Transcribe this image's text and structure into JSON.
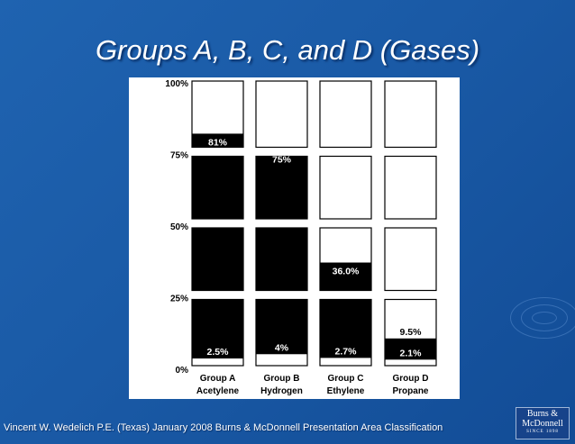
{
  "slide": {
    "title": "Groups A, B, C, and D (Gases)",
    "footer": "Vincent W. Wedelich P.E. (Texas) January 2008 Burns & McDonnell Presentation Area Classification",
    "logo_line1": "Burns &",
    "logo_line2": "McDonnell",
    "logo_line3": "SINCE 1898"
  },
  "colors": {
    "background": "#1a5aa6",
    "fill": "#000000",
    "empty": "#ffffff"
  },
  "chart_data": {
    "type": "bar",
    "y_tick_labels": [
      "100%",
      "75%",
      "50%",
      "25%",
      "0%"
    ],
    "ylim": [
      0,
      100
    ],
    "categories": [
      {
        "group": "Group A",
        "gas": "Acetylene",
        "lower": 2.5,
        "upper": 81,
        "lower_label": "2.5%",
        "upper_label": "81%"
      },
      {
        "group": "Group B",
        "gas": "Hydrogen",
        "lower": 4,
        "upper": 75,
        "lower_label": "4%",
        "upper_label": "75%"
      },
      {
        "group": "Group C",
        "gas": "Ethylene",
        "lower": 2.7,
        "upper": 36,
        "lower_label": "2.7%",
        "upper_label": "36.0%"
      },
      {
        "group": "Group D",
        "gas": "Propane",
        "lower": 2.1,
        "upper": 9.5,
        "lower_label": "2.1%",
        "upper_label": "9.5%"
      }
    ]
  }
}
